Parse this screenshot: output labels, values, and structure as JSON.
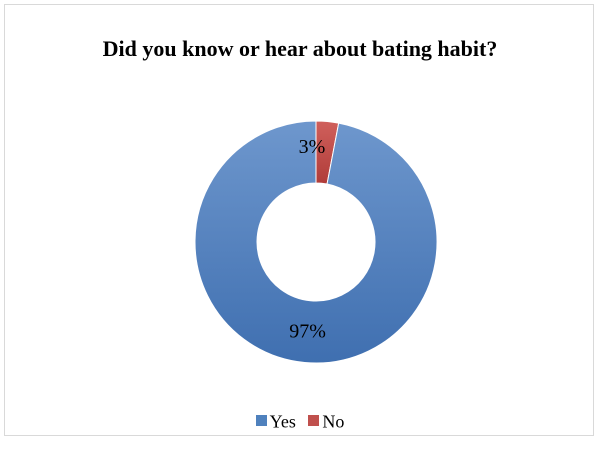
{
  "chart_data": {
    "type": "pie",
    "title": "Did you know or hear about bating habit?",
    "categories": [
      "Yes",
      "No"
    ],
    "values": [
      97,
      3
    ],
    "data_labels": [
      "97%",
      "3%"
    ],
    "colors": [
      "#4f81bd",
      "#c0504d"
    ],
    "donut": true,
    "legend_position": "bottom"
  }
}
